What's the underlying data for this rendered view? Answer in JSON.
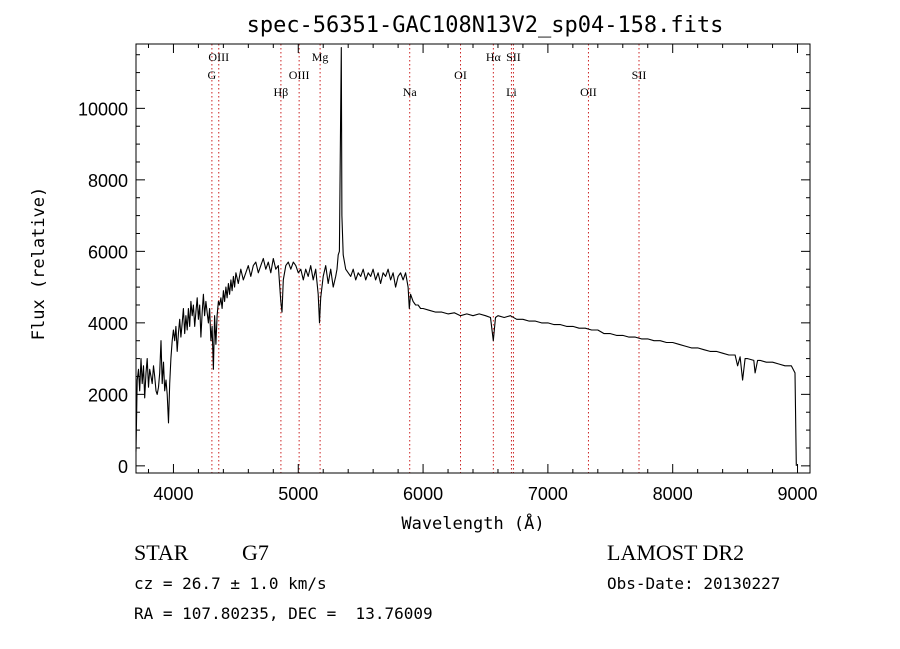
{
  "chart_data": {
    "type": "line",
    "title": "spec-56351-GAC108N13V2_sp04-158.fits",
    "xlabel": "Wavelength (Å)",
    "ylabel": "Flux (relative)",
    "xlim": [
      3700,
      9100
    ],
    "ylim": [
      -200,
      11800
    ],
    "xticks": [
      4000,
      5000,
      6000,
      7000,
      8000,
      9000
    ],
    "yticks": [
      0,
      2000,
      4000,
      6000,
      8000,
      10000
    ],
    "x_minor_step": 200,
    "y_minor_step": 500,
    "series": [
      {
        "points": [
          [
            3700,
            400
          ],
          [
            3710,
            2400
          ],
          [
            3720,
            2700
          ],
          [
            3730,
            2100
          ],
          [
            3740,
            3000
          ],
          [
            3750,
            2300
          ],
          [
            3760,
            2800
          ],
          [
            3770,
            1900
          ],
          [
            3780,
            2600
          ],
          [
            3790,
            3000
          ],
          [
            3800,
            2200
          ],
          [
            3810,
            2700
          ],
          [
            3820,
            2500
          ],
          [
            3830,
            2300
          ],
          [
            3840,
            2800
          ],
          [
            3850,
            2500
          ],
          [
            3860,
            2100
          ],
          [
            3870,
            2000
          ],
          [
            3880,
            2200
          ],
          [
            3890,
            2600
          ],
          [
            3900,
            3500
          ],
          [
            3910,
            2300
          ],
          [
            3920,
            2900
          ],
          [
            3930,
            2100
          ],
          [
            3940,
            2400
          ],
          [
            3950,
            2000
          ],
          [
            3960,
            1200
          ],
          [
            3970,
            2300
          ],
          [
            3980,
            3000
          ],
          [
            3990,
            3500
          ],
          [
            4000,
            3800
          ],
          [
            4010,
            3500
          ],
          [
            4020,
            3900
          ],
          [
            4030,
            3200
          ],
          [
            4040,
            3700
          ],
          [
            4050,
            4100
          ],
          [
            4060,
            3600
          ],
          [
            4070,
            4000
          ],
          [
            4080,
            4400
          ],
          [
            4090,
            3700
          ],
          [
            4100,
            4200
          ],
          [
            4110,
            3800
          ],
          [
            4120,
            4400
          ],
          [
            4130,
            3900
          ],
          [
            4140,
            4600
          ],
          [
            4150,
            4200
          ],
          [
            4160,
            4500
          ],
          [
            4170,
            3900
          ],
          [
            4180,
            4300
          ],
          [
            4190,
            4700
          ],
          [
            4200,
            4100
          ],
          [
            4210,
            4500
          ],
          [
            4220,
            3600
          ],
          [
            4230,
            4300
          ],
          [
            4240,
            4800
          ],
          [
            4250,
            4200
          ],
          [
            4260,
            4600
          ],
          [
            4270,
            4300
          ],
          [
            4280,
            4000
          ],
          [
            4290,
            4400
          ],
          [
            4300,
            3500
          ],
          [
            4310,
            3900
          ],
          [
            4320,
            2700
          ],
          [
            4330,
            4200
          ],
          [
            4340,
            3400
          ],
          [
            4350,
            4200
          ],
          [
            4360,
            4600
          ],
          [
            4370,
            4500
          ],
          [
            4380,
            4700
          ],
          [
            4390,
            4400
          ],
          [
            4400,
            4900
          ],
          [
            4410,
            4600
          ],
          [
            4420,
            5000
          ],
          [
            4430,
            4700
          ],
          [
            4440,
            5100
          ],
          [
            4450,
            4800
          ],
          [
            4460,
            5200
          ],
          [
            4470,
            4900
          ],
          [
            4480,
            5300
          ],
          [
            4490,
            5000
          ],
          [
            4500,
            5400
          ],
          [
            4520,
            5100
          ],
          [
            4540,
            5500
          ],
          [
            4560,
            5200
          ],
          [
            4580,
            5400
          ],
          [
            4600,
            5600
          ],
          [
            4620,
            5300
          ],
          [
            4640,
            5600
          ],
          [
            4660,
            5700
          ],
          [
            4680,
            5400
          ],
          [
            4700,
            5600
          ],
          [
            4720,
            5800
          ],
          [
            4740,
            5500
          ],
          [
            4760,
            5700
          ],
          [
            4780,
            5400
          ],
          [
            4800,
            5800
          ],
          [
            4820,
            5500
          ],
          [
            4840,
            5600
          ],
          [
            4860,
            4600
          ],
          [
            4870,
            4300
          ],
          [
            4880,
            5200
          ],
          [
            4900,
            5600
          ],
          [
            4920,
            5700
          ],
          [
            4940,
            5500
          ],
          [
            4960,
            5700
          ],
          [
            4980,
            5600
          ],
          [
            5000,
            5400
          ],
          [
            5020,
            5500
          ],
          [
            5040,
            5200
          ],
          [
            5060,
            5500
          ],
          [
            5080,
            5300
          ],
          [
            5100,
            5600
          ],
          [
            5120,
            5200
          ],
          [
            5140,
            5500
          ],
          [
            5160,
            4800
          ],
          [
            5170,
            4000
          ],
          [
            5180,
            4700
          ],
          [
            5200,
            5300
          ],
          [
            5220,
            5600
          ],
          [
            5240,
            5100
          ],
          [
            5260,
            5500
          ],
          [
            5280,
            5000
          ],
          [
            5300,
            5300
          ],
          [
            5310,
            5500
          ],
          [
            5320,
            5900
          ],
          [
            5330,
            6000
          ],
          [
            5340,
            10000
          ],
          [
            5345,
            11700
          ],
          [
            5350,
            7000
          ],
          [
            5360,
            5900
          ],
          [
            5380,
            5500
          ],
          [
            5400,
            5400
          ],
          [
            5420,
            5300
          ],
          [
            5440,
            5500
          ],
          [
            5460,
            5200
          ],
          [
            5480,
            5400
          ],
          [
            5500,
            5300
          ],
          [
            5520,
            5500
          ],
          [
            5540,
            5200
          ],
          [
            5560,
            5400
          ],
          [
            5580,
            5300
          ],
          [
            5600,
            5500
          ],
          [
            5620,
            5200
          ],
          [
            5640,
            5400
          ],
          [
            5660,
            5100
          ],
          [
            5680,
            5400
          ],
          [
            5700,
            5300
          ],
          [
            5720,
            5500
          ],
          [
            5740,
            5200
          ],
          [
            5760,
            5400
          ],
          [
            5780,
            5000
          ],
          [
            5800,
            5300
          ],
          [
            5820,
            5400
          ],
          [
            5840,
            5200
          ],
          [
            5860,
            5400
          ],
          [
            5880,
            5000
          ],
          [
            5890,
            4400
          ],
          [
            5900,
            4800
          ],
          [
            5920,
            4600
          ],
          [
            5940,
            4500
          ],
          [
            5960,
            4500
          ],
          [
            5980,
            4400
          ],
          [
            6000,
            4400
          ],
          [
            6050,
            4350
          ],
          [
            6100,
            4300
          ],
          [
            6150,
            4300
          ],
          [
            6200,
            4250
          ],
          [
            6250,
            4280
          ],
          [
            6300,
            4200
          ],
          [
            6350,
            4250
          ],
          [
            6400,
            4200
          ],
          [
            6450,
            4250
          ],
          [
            6500,
            4200
          ],
          [
            6540,
            4150
          ],
          [
            6563,
            3500
          ],
          [
            6580,
            4150
          ],
          [
            6600,
            4200
          ],
          [
            6650,
            4150
          ],
          [
            6700,
            4200
          ],
          [
            6750,
            4100
          ],
          [
            6800,
            4100
          ],
          [
            6850,
            4050
          ],
          [
            6900,
            4050
          ],
          [
            6950,
            4000
          ],
          [
            7000,
            4000
          ],
          [
            7050,
            3950
          ],
          [
            7100,
            3950
          ],
          [
            7150,
            3900
          ],
          [
            7200,
            3900
          ],
          [
            7250,
            3850
          ],
          [
            7300,
            3850
          ],
          [
            7350,
            3800
          ],
          [
            7400,
            3800
          ],
          [
            7450,
            3700
          ],
          [
            7500,
            3700
          ],
          [
            7550,
            3650
          ],
          [
            7600,
            3650
          ],
          [
            7650,
            3600
          ],
          [
            7700,
            3600
          ],
          [
            7750,
            3550
          ],
          [
            7800,
            3550
          ],
          [
            7850,
            3500
          ],
          [
            7900,
            3500
          ],
          [
            7950,
            3450
          ],
          [
            8000,
            3450
          ],
          [
            8050,
            3400
          ],
          [
            8100,
            3350
          ],
          [
            8150,
            3300
          ],
          [
            8200,
            3300
          ],
          [
            8250,
            3250
          ],
          [
            8300,
            3200
          ],
          [
            8350,
            3200
          ],
          [
            8400,
            3150
          ],
          [
            8450,
            3100
          ],
          [
            8500,
            3100
          ],
          [
            8520,
            2800
          ],
          [
            8540,
            3050
          ],
          [
            8560,
            2400
          ],
          [
            8580,
            3000
          ],
          [
            8600,
            3000
          ],
          [
            8650,
            2950
          ],
          [
            8660,
            2600
          ],
          [
            8680,
            2950
          ],
          [
            8700,
            2950
          ],
          [
            8750,
            2900
          ],
          [
            8800,
            2900
          ],
          [
            8850,
            2850
          ],
          [
            8900,
            2800
          ],
          [
            8950,
            2800
          ],
          [
            8980,
            2600
          ],
          [
            8990,
            0
          ]
        ]
      }
    ],
    "lines": [
      {
        "wavelength": 4308,
        "label": "G",
        "row": 2
      },
      {
        "wavelength": 4363,
        "label": "OIII",
        "row": 1
      },
      {
        "wavelength": 4861,
        "label": "Hβ",
        "row": 3
      },
      {
        "wavelength": 5007,
        "label": "OIII",
        "row": 2
      },
      {
        "wavelength": 5175,
        "label": "Mg",
        "row": 1
      },
      {
        "wavelength": 5893,
        "label": "Na",
        "row": 3
      },
      {
        "wavelength": 6300,
        "label": "OI",
        "row": 2
      },
      {
        "wavelength": 6563,
        "label": "Hα",
        "row": 1
      },
      {
        "wavelength": 6708,
        "label": "Li",
        "row": 3
      },
      {
        "wavelength": 6724,
        "label": "SII",
        "row": 1
      },
      {
        "wavelength": 7325,
        "label": "OII",
        "row": 3
      },
      {
        "wavelength": 7730,
        "label": "SII",
        "row": 2
      }
    ],
    "line_color": "#000000",
    "marker_color": "#cc2222"
  },
  "info": {
    "object_class": "STAR",
    "subclass": "G7",
    "survey": "LAMOST DR2",
    "redshift": "cz = 26.7 ± 1.0 km/s",
    "obs_date": "Obs-Date: 20130227",
    "coords": "RA = 107.80235, DEC =  13.76009"
  }
}
